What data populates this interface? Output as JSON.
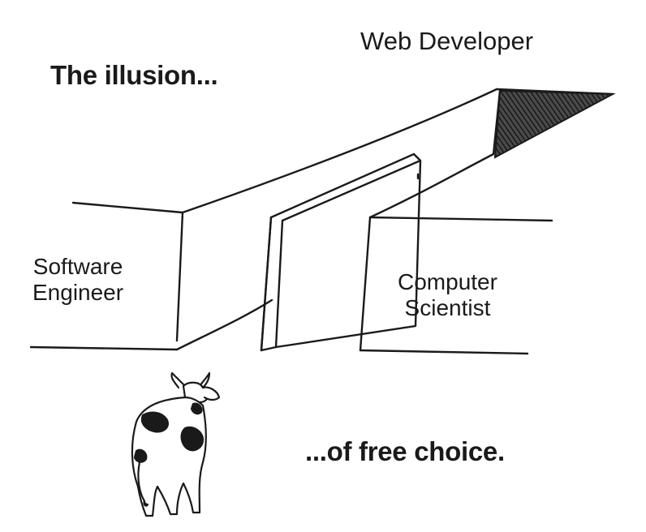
{
  "caption_top": "The illusion...",
  "caption_bottom": "...of free choice.",
  "paths": {
    "web_developer": "Web Developer",
    "software_engineer": [
      "Software",
      "Engineer"
    ],
    "computer_scientist": [
      "Computer",
      "Scientist"
    ]
  },
  "colors": {
    "ink": "#1a1a1a",
    "background": "#ffffff",
    "hatch": "#2a2a2a"
  }
}
